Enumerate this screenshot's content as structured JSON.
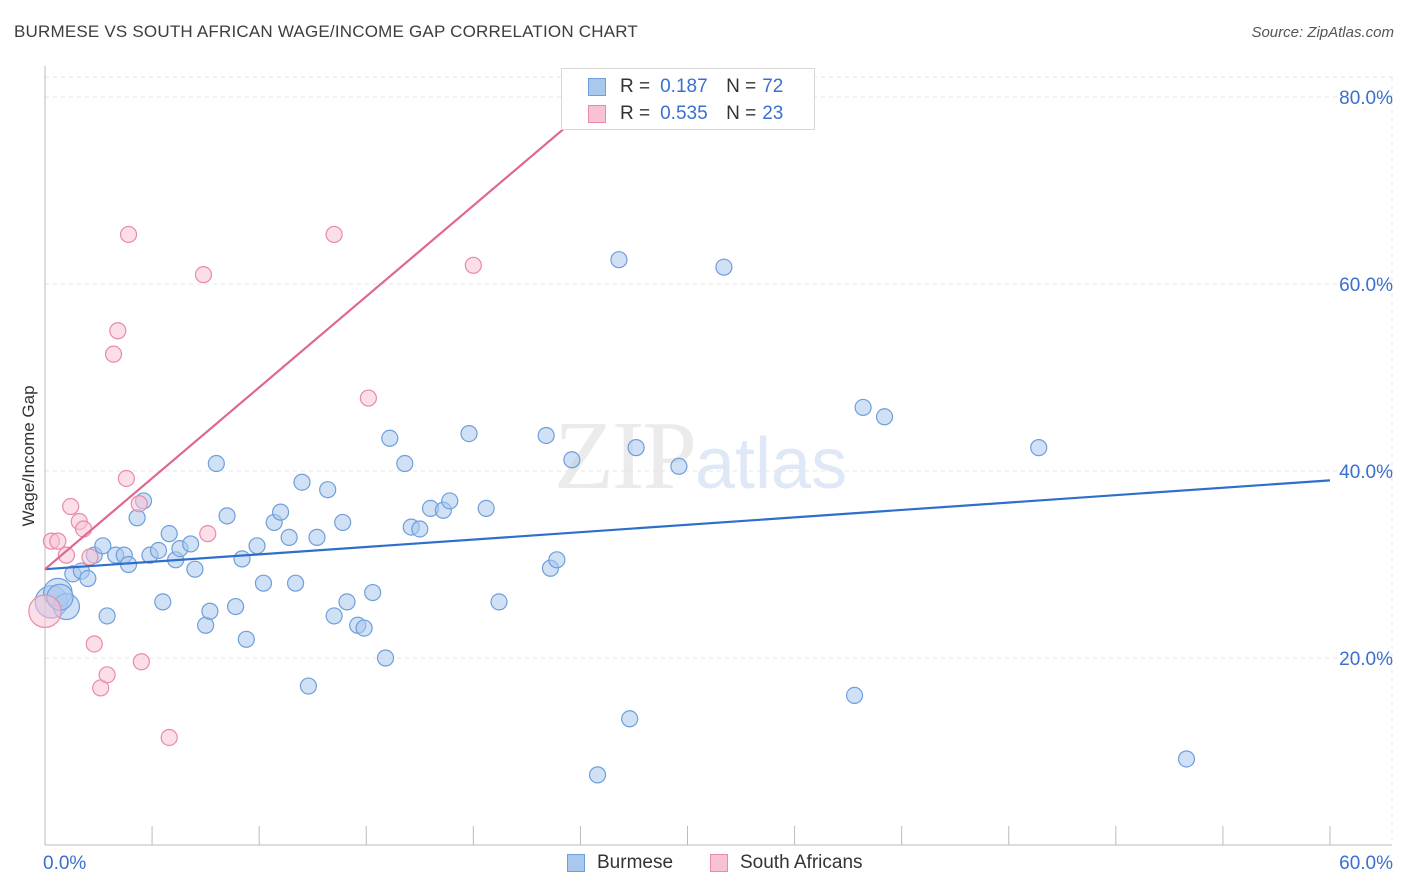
{
  "header": {
    "title": "BURMESE VS SOUTH AFRICAN WAGE/INCOME GAP CORRELATION CHART",
    "source": "Source: ZipAtlas.com"
  },
  "watermark": {
    "zip": "ZIP",
    "atlas": "atlas"
  },
  "legend_top": {
    "rows": [
      {
        "r_label": "R =",
        "r_value": "0.187",
        "n_label": "N =",
        "n_value": "72"
      },
      {
        "r_label": "R =",
        "r_value": "0.535",
        "n_label": "N =",
        "n_value": "23"
      }
    ]
  },
  "legend_bottom": {
    "series1": "Burmese",
    "series2": "South Africans"
  },
  "colors": {
    "blue_fill": "#a9c8ee",
    "blue_stroke": "#6e9edb",
    "blue_line": "#2f6fcc",
    "pink_fill": "#f7c3d3",
    "pink_stroke": "#e98aa8",
    "pink_line": "#e0678f",
    "axis_label": "#3a6fd0",
    "grid": "#e4e4e4"
  },
  "chart_data": {
    "type": "scatter",
    "title": "BURMESE VS SOUTH AFRICAN WAGE/INCOME GAP CORRELATION CHART",
    "xlabel": "",
    "ylabel": "Wage/Income Gap",
    "xlim": [
      0,
      60
    ],
    "ylim": [
      0,
      82
    ],
    "x_tick_labels": [
      {
        "value": 0,
        "label": "0.0%"
      },
      {
        "value": 60,
        "label": "60.0%"
      }
    ],
    "y_tick_labels": [
      {
        "value": 20,
        "label": "20.0%"
      },
      {
        "value": 40,
        "label": "40.0%"
      },
      {
        "value": 60,
        "label": "60.0%"
      },
      {
        "value": 80,
        "label": "80.0%"
      }
    ],
    "series": [
      {
        "name": "Burmese",
        "r": 0.187,
        "n": 72,
        "trend": {
          "x": [
            0,
            60
          ],
          "y": [
            29.5,
            39.0
          ]
        },
        "points": [
          [
            0.3,
            26.0,
            1.8
          ],
          [
            0.6,
            27.0,
            1.3
          ],
          [
            1.0,
            25.5,
            1.0
          ],
          [
            0.7,
            26.5,
            1.0
          ],
          [
            1.3,
            29.0,
            0
          ],
          [
            1.7,
            29.3,
            0
          ],
          [
            2.0,
            28.5,
            0
          ],
          [
            2.3,
            31.0,
            0
          ],
          [
            2.7,
            32.0,
            0
          ],
          [
            2.9,
            24.5,
            0
          ],
          [
            3.3,
            31.0,
            0
          ],
          [
            3.7,
            31.0,
            0
          ],
          [
            3.9,
            30.0,
            0
          ],
          [
            4.3,
            35.0,
            0
          ],
          [
            4.6,
            36.8,
            0
          ],
          [
            4.9,
            31.0,
            0
          ],
          [
            5.3,
            31.5,
            0
          ],
          [
            5.5,
            26.0,
            0
          ],
          [
            5.8,
            33.3,
            0
          ],
          [
            6.1,
            30.5,
            0
          ],
          [
            6.3,
            31.7,
            0
          ],
          [
            6.8,
            32.2,
            0
          ],
          [
            7.0,
            29.5,
            0
          ],
          [
            7.5,
            23.5,
            0
          ],
          [
            7.7,
            25.0,
            0
          ],
          [
            8.0,
            40.8,
            0
          ],
          [
            8.5,
            35.2,
            0
          ],
          [
            8.9,
            25.5,
            0
          ],
          [
            9.2,
            30.6,
            0
          ],
          [
            9.4,
            22.0,
            0
          ],
          [
            9.9,
            32.0,
            0
          ],
          [
            10.2,
            28.0,
            0
          ],
          [
            10.7,
            34.5,
            0
          ],
          [
            11.0,
            35.6,
            0
          ],
          [
            11.4,
            32.9,
            0
          ],
          [
            11.7,
            28.0,
            0
          ],
          [
            12.0,
            38.8,
            0
          ],
          [
            12.3,
            17.0,
            0
          ],
          [
            12.7,
            32.9,
            0
          ],
          [
            13.2,
            38.0,
            0
          ],
          [
            13.5,
            24.5,
            0
          ],
          [
            13.9,
            34.5,
            0
          ],
          [
            14.1,
            26.0,
            0
          ],
          [
            14.6,
            23.5,
            0
          ],
          [
            14.9,
            23.2,
            0
          ],
          [
            15.3,
            27.0,
            0
          ],
          [
            15.9,
            20.0,
            0
          ],
          [
            16.1,
            43.5,
            0
          ],
          [
            16.8,
            40.8,
            0
          ],
          [
            17.1,
            34.0,
            0
          ],
          [
            17.5,
            33.8,
            0
          ],
          [
            18.0,
            36.0,
            0
          ],
          [
            18.6,
            35.8,
            0
          ],
          [
            18.9,
            36.8,
            0
          ],
          [
            19.8,
            44.0,
            0
          ],
          [
            20.6,
            36.0,
            0
          ],
          [
            21.2,
            26.0,
            0
          ],
          [
            23.4,
            43.8,
            0
          ],
          [
            23.6,
            29.6,
            0
          ],
          [
            23.9,
            30.5,
            0
          ],
          [
            24.6,
            41.2,
            0
          ],
          [
            25.8,
            7.5,
            0
          ],
          [
            26.8,
            62.6,
            0
          ],
          [
            27.3,
            13.5,
            0
          ],
          [
            27.6,
            42.5,
            0
          ],
          [
            29.6,
            40.5,
            0
          ],
          [
            31.7,
            61.8,
            0
          ],
          [
            37.8,
            16.0,
            0
          ],
          [
            38.2,
            46.8,
            0
          ],
          [
            39.2,
            45.8,
            0
          ],
          [
            46.4,
            42.5,
            0
          ],
          [
            53.3,
            9.2,
            0
          ]
        ]
      },
      {
        "name": "South Africans",
        "r": 0.535,
        "n": 23,
        "trend": {
          "x": [
            0,
            27.0
          ],
          "y": [
            29.5,
            82.0
          ],
          "solid_until_x": 25.0
        },
        "points": [
          [
            0.0,
            25.0,
            1.8
          ],
          [
            0.3,
            32.5,
            0
          ],
          [
            0.6,
            32.5,
            0
          ],
          [
            1.0,
            31.0,
            0
          ],
          [
            1.2,
            36.2,
            0
          ],
          [
            1.6,
            34.6,
            0
          ],
          [
            1.8,
            33.8,
            0
          ],
          [
            2.1,
            30.8,
            0
          ],
          [
            2.3,
            21.5,
            0
          ],
          [
            2.6,
            16.8,
            0
          ],
          [
            2.9,
            18.2,
            0
          ],
          [
            3.2,
            52.5,
            0
          ],
          [
            3.4,
            55.0,
            0
          ],
          [
            3.8,
            39.2,
            0
          ],
          [
            3.9,
            65.3,
            0
          ],
          [
            4.4,
            36.5,
            0
          ],
          [
            4.5,
            19.6,
            0
          ],
          [
            5.8,
            11.5,
            0
          ],
          [
            7.4,
            61.0,
            0
          ],
          [
            7.6,
            33.3,
            0
          ],
          [
            13.5,
            65.3,
            0
          ],
          [
            15.1,
            47.8,
            0
          ],
          [
            20.0,
            62.0,
            0
          ]
        ]
      }
    ]
  }
}
